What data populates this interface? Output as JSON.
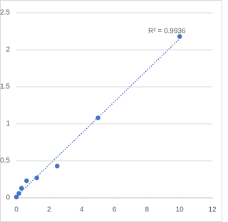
{
  "chart_data": {
    "type": "scatter",
    "x": [
      0,
      0.156,
      0.313,
      0.625,
      1.25,
      2.5,
      5,
      10
    ],
    "series": [
      {
        "color": "#4472c4",
        "values": [
          0.01,
          0.06,
          0.13,
          0.23,
          0.27,
          0.43,
          1.08,
          2.18
        ]
      }
    ],
    "xlim": [
      0,
      12
    ],
    "xticks": [
      0,
      2,
      4,
      6,
      8,
      10,
      12
    ],
    "ylim": [
      0,
      2.5
    ],
    "yticks": [
      0,
      0.5,
      1,
      1.5,
      2,
      2.5
    ],
    "grid": true,
    "trendline": true,
    "annotation": "R² = 0.9936"
  }
}
